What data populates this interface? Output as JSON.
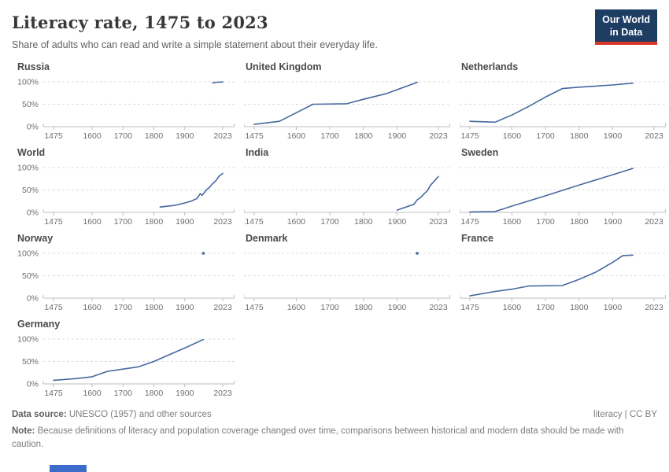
{
  "header": {
    "title": "Literacy rate, 1475 to 2023",
    "subtitle": "Share of adults who can read and write a simple statement about their everyday life."
  },
  "logo": {
    "line1": "Our World",
    "line2": "in Data",
    "bg_color": "#1d3d63",
    "accent_color": "#d8352a"
  },
  "chart_data": {
    "type": "line",
    "title": "Literacy rate, 1475 to 2023",
    "layout": "small-multiples, 3 columns, horizontal dashed gridlines at 50% and 100%, y labels on left column only",
    "x_range": [
      1475,
      2023
    ],
    "x_ticks": [
      1475,
      1600,
      1700,
      1800,
      1900,
      2023
    ],
    "y_range": [
      0,
      100
    ],
    "y_ticks": [
      {
        "label": "100%",
        "value": 100
      },
      {
        "label": "50%",
        "value": 50
      },
      {
        "label": "0%",
        "value": 0
      }
    ],
    "line_color": "#4669a0",
    "series": [
      {
        "name": "Russia",
        "type": "line",
        "points": [
          [
            1990,
            97.5
          ],
          [
            2005,
            99.2
          ],
          [
            2023,
            99.7
          ]
        ]
      },
      {
        "name": "United Kingdom",
        "type": "line",
        "points": [
          [
            1475,
            5
          ],
          [
            1550,
            12
          ],
          [
            1650,
            50
          ],
          [
            1750,
            51
          ],
          [
            1800,
            61
          ],
          [
            1870,
            74
          ],
          [
            1960,
            99
          ]
        ]
      },
      {
        "name": "Netherlands",
        "type": "line",
        "points": [
          [
            1475,
            12
          ],
          [
            1550,
            10
          ],
          [
            1600,
            26
          ],
          [
            1650,
            45
          ],
          [
            1700,
            66
          ],
          [
            1750,
            85
          ],
          [
            1800,
            88
          ],
          [
            1900,
            93
          ],
          [
            1960,
            97
          ]
        ]
      },
      {
        "name": "World",
        "type": "line",
        "points": [
          [
            1820,
            12
          ],
          [
            1870,
            16
          ],
          [
            1900,
            21
          ],
          [
            1920,
            25
          ],
          [
            1940,
            31
          ],
          [
            1950,
            42
          ],
          [
            1956,
            38
          ],
          [
            1962,
            43
          ],
          [
            1970,
            50
          ],
          [
            1980,
            56
          ],
          [
            1990,
            64
          ],
          [
            2000,
            70
          ],
          [
            2010,
            80
          ],
          [
            2023,
            87
          ]
        ]
      },
      {
        "name": "India",
        "type": "line",
        "points": [
          [
            1900,
            5
          ],
          [
            1950,
            18
          ],
          [
            1960,
            28
          ],
          [
            1970,
            33
          ],
          [
            1980,
            41
          ],
          [
            1990,
            48
          ],
          [
            2000,
            61
          ],
          [
            2010,
            69
          ],
          [
            2023,
            80
          ]
        ]
      },
      {
        "name": "Sweden",
        "type": "line",
        "points": [
          [
            1475,
            1
          ],
          [
            1550,
            2
          ],
          [
            1600,
            14
          ],
          [
            1700,
            37
          ],
          [
            1800,
            61
          ],
          [
            1900,
            84
          ],
          [
            1960,
            98
          ]
        ]
      },
      {
        "name": "Norway",
        "type": "scatter",
        "points": [
          [
            1960,
            100
          ]
        ]
      },
      {
        "name": "Denmark",
        "type": "scatter",
        "points": [
          [
            1960,
            100
          ]
        ]
      },
      {
        "name": "France",
        "type": "line",
        "points": [
          [
            1475,
            5
          ],
          [
            1550,
            15
          ],
          [
            1600,
            20
          ],
          [
            1650,
            27
          ],
          [
            1750,
            28
          ],
          [
            1800,
            42
          ],
          [
            1850,
            58
          ],
          [
            1900,
            80
          ],
          [
            1930,
            95
          ],
          [
            1960,
            96
          ]
        ]
      },
      {
        "name": "Germany",
        "type": "line",
        "points": [
          [
            1475,
            8
          ],
          [
            1550,
            12
          ],
          [
            1600,
            16
          ],
          [
            1650,
            28
          ],
          [
            1700,
            33
          ],
          [
            1750,
            38
          ],
          [
            1800,
            50
          ],
          [
            1850,
            65
          ],
          [
            1900,
            80
          ],
          [
            1960,
            99
          ]
        ]
      }
    ]
  },
  "footer": {
    "source_label": "Data source:",
    "source_text": " UNESCO (1957) and other sources",
    "rights": "literacy | CC BY",
    "note_label": "Note:",
    "note_text": " Because definitions of literacy and population coverage changed over time, comparisons between historical and modern data should be made with caution."
  }
}
